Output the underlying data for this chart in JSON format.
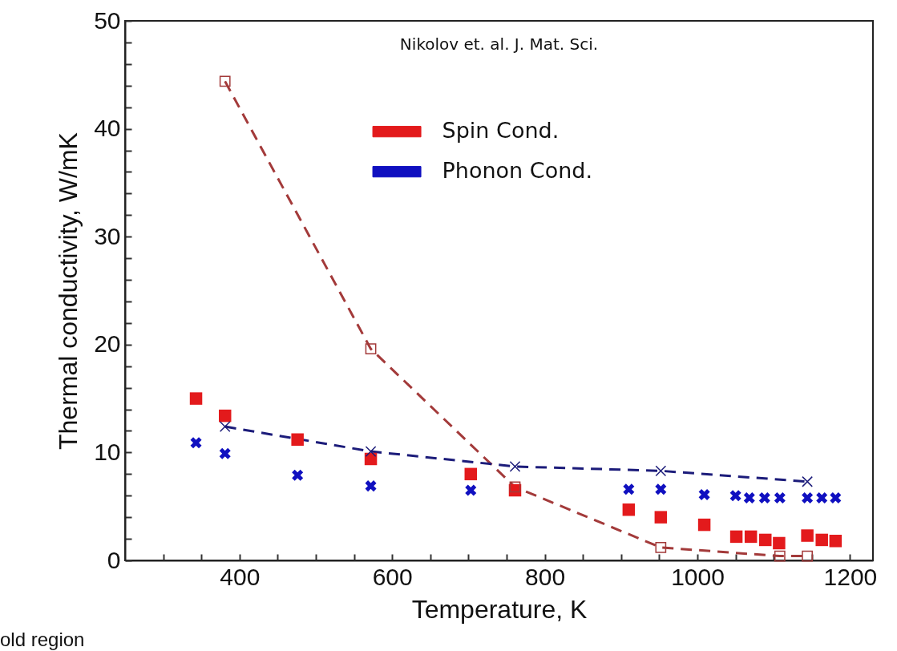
{
  "chart_data": {
    "type": "scatter",
    "xlabel": "Temperature, K",
    "ylabel": "Thermal conductivity, W/mK",
    "annotations": [
      "Nikolov et. al. J. Mat. Sci.",
      "old region"
    ],
    "xlim": [
      250,
      1230
    ],
    "ylim": [
      0,
      50
    ],
    "xticks": [
      {
        "value": 300,
        "label": null
      },
      {
        "value": 350,
        "label": null
      },
      400,
      {
        "value": 450,
        "label": null
      },
      {
        "value": 500,
        "label": null
      },
      {
        "value": 550,
        "label": null
      },
      600,
      {
        "value": 650,
        "label": null
      },
      {
        "value": 700,
        "label": null
      },
      {
        "value": 750,
        "label": null
      },
      800,
      {
        "value": 850,
        "label": null
      },
      {
        "value": 900,
        "label": null
      },
      {
        "value": 950,
        "label": null
      },
      1000,
      {
        "value": 1050,
        "label": null
      },
      {
        "value": 1100,
        "label": null
      },
      {
        "value": 1150,
        "label": null
      },
      1200
    ],
    "yticks": [
      0,
      {
        "value": 2,
        "label": null
      },
      {
        "value": 4,
        "label": null
      },
      {
        "value": 6,
        "label": null
      },
      {
        "value": 8,
        "label": null
      },
      10,
      {
        "value": 12,
        "label": null
      },
      {
        "value": 14,
        "label": null
      },
      {
        "value": 16,
        "label": null
      },
      {
        "value": 18,
        "label": null
      },
      20,
      {
        "value": 22,
        "label": null
      },
      {
        "value": 24,
        "label": null
      },
      {
        "value": 26,
        "label": null
      },
      {
        "value": 28,
        "label": null
      },
      30,
      {
        "value": 32,
        "label": null
      },
      {
        "value": 34,
        "label": null
      },
      {
        "value": 36,
        "label": null
      },
      {
        "value": 38,
        "label": null
      },
      40,
      {
        "value": 42,
        "label": null
      },
      {
        "value": 44,
        "label": null
      },
      {
        "value": 46,
        "label": null
      },
      {
        "value": 48,
        "label": null
      },
      50
    ],
    "grid": false,
    "legend": "top",
    "series": [
      {
        "type": "line",
        "color": "#a33a3a",
        "marker": "square",
        "line_style": "dashed",
        "x": [
          381,
          572,
          761,
          952,
          1108,
          1144
        ],
        "values": [
          44.4,
          19.6,
          6.8,
          1.2,
          0.4,
          0.4
        ]
      },
      {
        "type": "line",
        "color": "#1c1c7a",
        "marker": "cross",
        "line_style": "dashed",
        "x": [
          381,
          572,
          761,
          952,
          1144
        ],
        "values": [
          12.4,
          10.1,
          8.7,
          8.3,
          7.3
        ]
      },
      {
        "name": "Spin Cond.",
        "color": "#e31a1c",
        "marker": "square",
        "x": [
          343,
          381,
          476,
          572,
          703,
          761,
          910,
          952,
          1009,
          1051,
          1070,
          1089,
          1107,
          1144,
          1163,
          1181
        ],
        "values": [
          15.0,
          13.4,
          11.2,
          9.4,
          8.0,
          6.5,
          4.7,
          4.0,
          3.3,
          2.2,
          2.2,
          1.9,
          1.6,
          2.3,
          1.9,
          1.8
        ]
      },
      {
        "name": "Phonon Cond.",
        "color": "#1010c0",
        "marker": "cross",
        "x": [
          343,
          381,
          476,
          572,
          703,
          910,
          952,
          1009,
          1050,
          1068,
          1088,
          1108,
          1144,
          1163,
          1181
        ],
        "values": [
          10.9,
          9.9,
          7.9,
          6.9,
          6.5,
          6.6,
          6.6,
          6.1,
          6.0,
          5.8,
          5.8,
          5.8,
          5.8,
          5.8,
          5.8
        ]
      }
    ]
  }
}
